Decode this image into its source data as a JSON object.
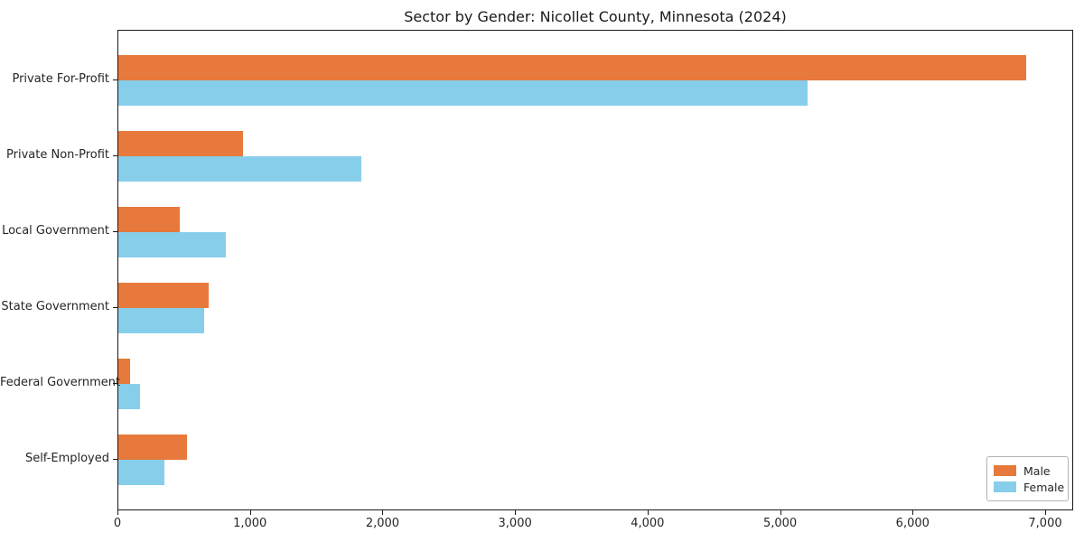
{
  "title": "Sector by Gender: Nicollet County, Minnesota (2024)",
  "chart_data": {
    "type": "bar",
    "orientation": "horizontal",
    "title": "Sector by Gender: Nicollet County, Minnesota (2024)",
    "categories": [
      "Private For-Profit",
      "Private Non-Profit",
      "Local Government",
      "State Government",
      "Federal Government",
      "Self-Employed"
    ],
    "series": [
      {
        "name": "Male",
        "color": "#e6793b",
        "values": [
          6850,
          940,
          460,
          680,
          90,
          520
        ]
      },
      {
        "name": "Female",
        "color": "#87ceeb",
        "values": [
          5200,
          1835,
          810,
          645,
          165,
          345
        ]
      }
    ],
    "xlim": [
      0,
      7000
    ],
    "xticks": [
      0,
      1000,
      2000,
      3000,
      4000,
      5000,
      6000,
      7000
    ],
    "xtick_labels": [
      "0",
      "1,000",
      "2,000",
      "3,000",
      "4,000",
      "5,000",
      "6,000",
      "7,000"
    ],
    "xlabel": "",
    "ylabel": "",
    "grid": false,
    "legend_position": "lower right",
    "legend_labels": [
      "Male",
      "Female"
    ]
  }
}
